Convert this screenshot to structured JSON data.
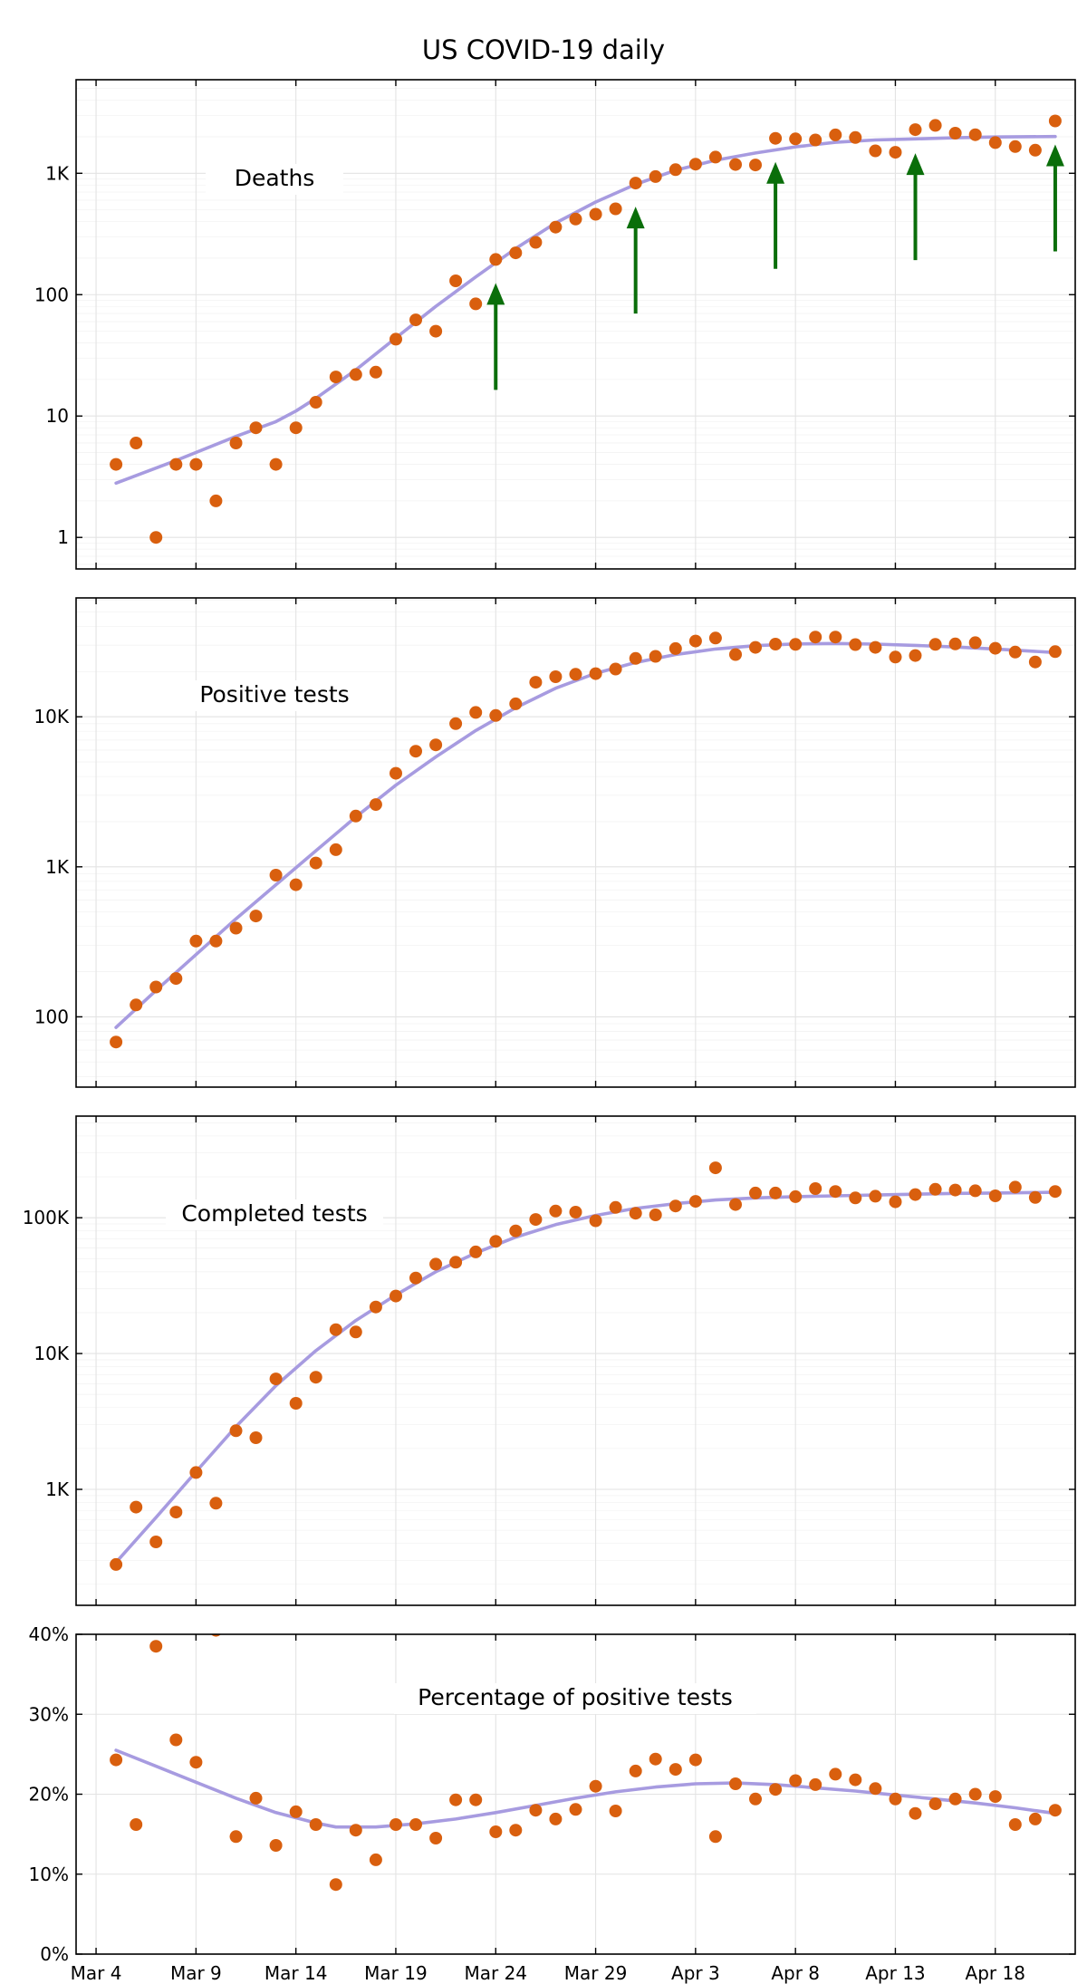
{
  "figure": {
    "title": "US COVID-19 daily"
  },
  "colors": {
    "points": "#d95f0e",
    "trend": "#a79be0",
    "arrows": "#0a6e0a",
    "grid": "#e3e3e3"
  },
  "chart_data": [
    {
      "type": "scatter",
      "label": "Deaths",
      "yscale": "log",
      "ylim": [
        0.55,
        5900
      ],
      "yticks": [
        1,
        10,
        100,
        1000
      ],
      "ytick_labels": [
        "1",
        "10",
        "100",
        "1K"
      ],
      "xticks": [
        4,
        9,
        14,
        19,
        24,
        29,
        34,
        39,
        44,
        49
      ],
      "xtick_labels": [
        "Mar 4",
        "Mar 9",
        "Mar 14",
        "Mar 19",
        "Mar 24",
        "Mar 29",
        "Apr 3",
        "Apr 8",
        "Apr 13",
        "Apr 18"
      ],
      "xlim": [
        3,
        53
      ],
      "x": [
        5,
        6,
        7,
        8,
        9,
        10,
        11,
        12,
        13,
        14,
        15,
        16,
        17,
        18,
        19,
        20,
        21,
        22,
        23,
        24,
        25,
        26,
        27,
        28,
        29,
        30,
        31,
        32,
        33,
        34,
        35,
        36,
        37,
        38,
        39,
        40,
        41,
        42,
        43,
        44,
        45,
        46,
        47,
        48,
        49,
        50,
        51,
        52
      ],
      "values": [
        4,
        6,
        1,
        4,
        4,
        2,
        6,
        8,
        4,
        8,
        13,
        21,
        22,
        23,
        43,
        62,
        50,
        130,
        84,
        195,
        221,
        270,
        360,
        420,
        460,
        510,
        830,
        940,
        1070,
        1190,
        1360,
        1180,
        1170,
        1940,
        1920,
        1880,
        2070,
        1970,
        1530,
        1490,
        2290,
        2480,
        2140,
        2080,
        1790,
        1660,
        1550,
        2700
      ],
      "trend": [
        [
          5,
          2.8
        ],
        [
          8,
          4.3
        ],
        [
          11,
          6.8
        ],
        [
          13,
          9.0
        ],
        [
          14,
          11.0
        ],
        [
          15,
          14
        ],
        [
          17,
          24
        ],
        [
          19,
          44
        ],
        [
          21,
          80
        ],
        [
          23,
          140
        ],
        [
          25,
          240
        ],
        [
          27,
          390
        ],
        [
          29,
          580
        ],
        [
          31,
          810
        ],
        [
          33,
          1060
        ],
        [
          35,
          1280
        ],
        [
          37,
          1470
        ],
        [
          39,
          1650
        ],
        [
          41,
          1800
        ],
        [
          43,
          1880
        ],
        [
          45,
          1920
        ],
        [
          47,
          1960
        ],
        [
          49,
          1990
        ],
        [
          52,
          2010
        ]
      ],
      "arrows": [
        24,
        31,
        38,
        45,
        52
      ]
    },
    {
      "type": "scatter",
      "label": "Positive tests",
      "yscale": "log",
      "ylim": [
        34,
        62000
      ],
      "yticks": [
        100,
        1000,
        10000
      ],
      "ytick_labels": [
        "100",
        "1K",
        "10K"
      ],
      "xticks": [
        4,
        9,
        14,
        19,
        24,
        29,
        34,
        39,
        44,
        49
      ],
      "xtick_labels": [
        "Mar 4",
        "Mar 9",
        "Mar 14",
        "Mar 19",
        "Mar 24",
        "Mar 29",
        "Apr 3",
        "Apr 8",
        "Apr 13",
        "Apr 18"
      ],
      "xlim": [
        3,
        53
      ],
      "x": [
        5,
        6,
        7,
        8,
        9,
        10,
        11,
        12,
        13,
        14,
        15,
        16,
        17,
        18,
        19,
        20,
        21,
        22,
        23,
        24,
        25,
        26,
        27,
        28,
        29,
        30,
        31,
        32,
        33,
        34,
        35,
        36,
        37,
        38,
        39,
        40,
        41,
        42,
        43,
        44,
        45,
        46,
        47,
        48,
        49,
        50,
        51,
        52
      ],
      "values": [
        68,
        120,
        158,
        180,
        320,
        320,
        390,
        470,
        880,
        760,
        1060,
        1300,
        2180,
        2600,
        4200,
        5900,
        6500,
        9000,
        10700,
        10200,
        12200,
        17000,
        18500,
        19200,
        19400,
        20800,
        24500,
        25300,
        28500,
        32000,
        33500,
        26000,
        29000,
        30500,
        30400,
        34000,
        34000,
        30300,
        29000,
        25000,
        25600,
        30400,
        30600,
        31200,
        28600,
        27000,
        23200,
        27200
      ],
      "trend": [
        [
          5,
          85
        ],
        [
          7,
          150
        ],
        [
          9,
          260
        ],
        [
          11,
          450
        ],
        [
          13,
          760
        ],
        [
          15,
          1280
        ],
        [
          17,
          2150
        ],
        [
          19,
          3500
        ],
        [
          21,
          5400
        ],
        [
          23,
          8100
        ],
        [
          25,
          11500
        ],
        [
          27,
          15500
        ],
        [
          29,
          19500
        ],
        [
          31,
          23000
        ],
        [
          33,
          26000
        ],
        [
          35,
          28300
        ],
        [
          37,
          29800
        ],
        [
          39,
          30600
        ],
        [
          41,
          30800
        ],
        [
          43,
          30500
        ],
        [
          45,
          29900
        ],
        [
          47,
          29200
        ],
        [
          49,
          28300
        ],
        [
          52,
          26800
        ]
      ]
    },
    {
      "type": "scatter",
      "label": "Completed tests",
      "yscale": "log",
      "ylim": [
        140,
        560000
      ],
      "yticks": [
        1000,
        10000,
        100000
      ],
      "ytick_labels": [
        "1K",
        "10K",
        "100K"
      ],
      "xticks": [
        4,
        9,
        14,
        19,
        24,
        29,
        34,
        39,
        44,
        49
      ],
      "xtick_labels": [
        "Mar 4",
        "Mar 9",
        "Mar 14",
        "Mar 19",
        "Mar 24",
        "Mar 29",
        "Apr 3",
        "Apr 8",
        "Apr 13",
        "Apr 18"
      ],
      "xlim": [
        3,
        53
      ],
      "x": [
        5,
        6,
        7,
        8,
        9,
        10,
        11,
        12,
        13,
        14,
        15,
        16,
        17,
        18,
        19,
        20,
        21,
        22,
        23,
        24,
        25,
        26,
        27,
        28,
        29,
        30,
        31,
        32,
        33,
        34,
        35,
        36,
        37,
        38,
        39,
        40,
        41,
        42,
        43,
        44,
        45,
        46,
        47,
        48,
        49,
        50,
        51,
        52
      ],
      "values": [
        280,
        740,
        410,
        680,
        1330,
        790,
        2700,
        2400,
        6500,
        4300,
        6700,
        15000,
        14400,
        22000,
        26500,
        36000,
        45500,
        47000,
        56000,
        67000,
        80000,
        97000,
        112000,
        110000,
        95000,
        119000,
        108000,
        105000,
        122000,
        132000,
        233000,
        125000,
        152000,
        152000,
        143000,
        164000,
        156000,
        140000,
        144000,
        131000,
        148000,
        162000,
        160000,
        158000,
        145000,
        168000,
        141000,
        156000
      ],
      "trend": [
        [
          5,
          290
        ],
        [
          7,
          620
        ],
        [
          9,
          1350
        ],
        [
          11,
          2900
        ],
        [
          13,
          5800
        ],
        [
          15,
          10500
        ],
        [
          17,
          17500
        ],
        [
          19,
          27000
        ],
        [
          21,
          40000
        ],
        [
          23,
          55000
        ],
        [
          25,
          72000
        ],
        [
          27,
          89000
        ],
        [
          29,
          104000
        ],
        [
          31,
          117000
        ],
        [
          33,
          127000
        ],
        [
          35,
          135000
        ],
        [
          37,
          140000
        ],
        [
          39,
          143000
        ],
        [
          41,
          145000
        ],
        [
          43,
          147000
        ],
        [
          45,
          149000
        ],
        [
          47,
          151000
        ],
        [
          49,
          152000
        ],
        [
          52,
          154000
        ]
      ]
    },
    {
      "type": "scatter",
      "label": "Percentage of positive tests",
      "yscale": "linear",
      "ylim": [
        0,
        40
      ],
      "yticks": [
        0,
        10,
        20,
        30,
        40
      ],
      "ytick_labels": [
        "0%",
        "10%",
        "20%",
        "30%",
        "40%"
      ],
      "xticks": [
        4,
        9,
        14,
        19,
        24,
        29,
        34,
        39,
        44,
        49
      ],
      "xtick_labels": [
        "Mar 4",
        "Mar 9",
        "Mar 14",
        "Mar 19",
        "Mar 24",
        "Mar 29",
        "Apr 3",
        "Apr 8",
        "Apr 13",
        "Apr 18"
      ],
      "xlim": [
        3,
        53
      ],
      "x": [
        5,
        6,
        7,
        8,
        9,
        10,
        11,
        12,
        13,
        14,
        15,
        16,
        17,
        18,
        19,
        20,
        21,
        22,
        23,
        24,
        25,
        26,
        27,
        28,
        29,
        30,
        31,
        32,
        33,
        34,
        35,
        36,
        37,
        38,
        39,
        40,
        41,
        42,
        43,
        44,
        45,
        46,
        47,
        48,
        49,
        50,
        51,
        52
      ],
      "values": [
        24.3,
        16.2,
        38.5,
        26.8,
        24.0,
        40.5,
        14.7,
        19.5,
        13.6,
        17.8,
        16.2,
        8.7,
        15.5,
        11.8,
        16.2,
        16.2,
        14.5,
        19.3,
        19.3,
        15.3,
        15.5,
        18.0,
        16.9,
        18.1,
        21.0,
        17.9,
        22.9,
        24.4,
        23.1,
        24.3,
        14.7,
        21.3,
        19.4,
        20.6,
        21.7,
        21.2,
        22.5,
        21.8,
        20.7,
        19.4,
        17.6,
        18.8,
        19.4,
        20.0,
        19.7,
        16.2,
        16.9,
        18.0
      ],
      "trend": [
        [
          5,
          25.5
        ],
        [
          7,
          23.5
        ],
        [
          9,
          21.5
        ],
        [
          11,
          19.5
        ],
        [
          13,
          17.7
        ],
        [
          15,
          16.4
        ],
        [
          16,
          15.9
        ],
        [
          18,
          15.9
        ],
        [
          20,
          16.3
        ],
        [
          22,
          16.9
        ],
        [
          24,
          17.7
        ],
        [
          26,
          18.6
        ],
        [
          28,
          19.5
        ],
        [
          30,
          20.3
        ],
        [
          32,
          20.9
        ],
        [
          34,
          21.3
        ],
        [
          36,
          21.4
        ],
        [
          38,
          21.2
        ],
        [
          40,
          20.8
        ],
        [
          42,
          20.4
        ],
        [
          44,
          19.9
        ],
        [
          46,
          19.4
        ],
        [
          48,
          18.9
        ],
        [
          50,
          18.3
        ],
        [
          52,
          17.6
        ]
      ]
    }
  ]
}
